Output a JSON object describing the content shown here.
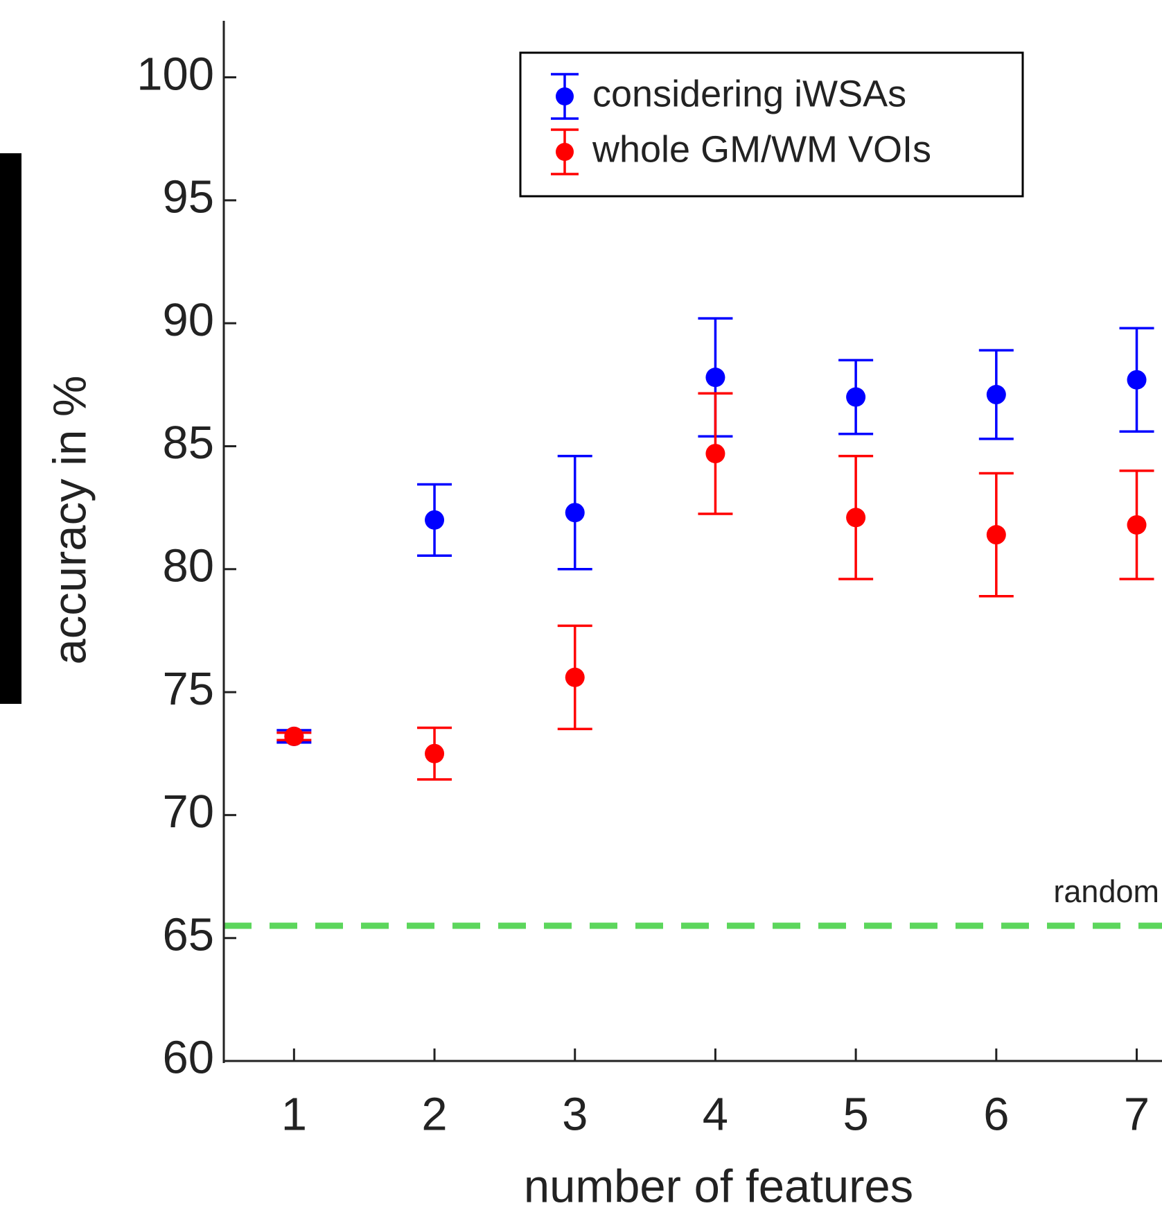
{
  "chart_data": {
    "type": "errorbar",
    "xlabel": "number of features",
    "ylabel": "accuracy in %",
    "x": [
      1,
      2,
      3,
      4,
      5,
      6,
      7
    ],
    "series": [
      {
        "name": "considering iWSAs",
        "color": "#0000ff",
        "values": [
          73.2,
          82.0,
          82.3,
          87.8,
          87.0,
          87.1,
          87.7
        ],
        "errors": [
          0.25,
          1.45,
          2.3,
          2.4,
          1.5,
          1.8,
          2.1
        ]
      },
      {
        "name": "whole GM/WM VOIs",
        "color": "#ff0000",
        "values": [
          73.2,
          72.5,
          75.6,
          84.7,
          82.1,
          81.4,
          81.8
        ],
        "errors": [
          0.15,
          1.05,
          2.1,
          2.45,
          2.5,
          2.5,
          2.2
        ]
      }
    ],
    "reference_line": {
      "label": "random",
      "value": 65.5,
      "color": "#5cd65c"
    },
    "xlim": [
      0.5,
      7.18
    ],
    "ylim": [
      60,
      102.3
    ],
    "xticks": [
      1,
      2,
      3,
      4,
      5,
      6,
      7
    ],
    "yticks": [
      60,
      65,
      70,
      75,
      80,
      85,
      90,
      95,
      100
    ],
    "legend": "upper center"
  }
}
